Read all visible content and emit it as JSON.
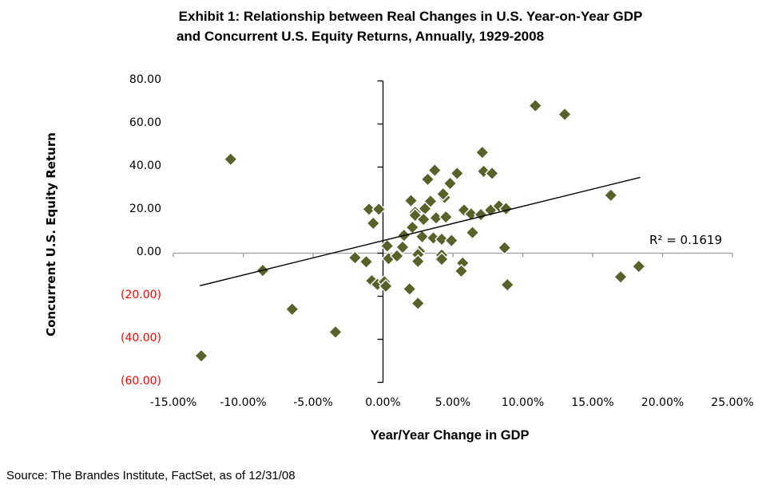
{
  "title": {
    "line1": "Exhibit 1:  Relationship between Real Changes in U.S. Year-on-Year GDP",
    "line2": "and Concurrent U.S. Equity Returns, Annually, 1929-2008"
  },
  "source_note": "Source:  The Brandes Institute, FactSet, as of 12/31/08",
  "chart_data": {
    "type": "scatter",
    "title": "Exhibit 1: Relationship between Real Changes in U.S. Year-on-Year GDP and Concurrent U.S. Equity Returns, Annually, 1929-2008",
    "xlabel": "Year/Year Change in GDP",
    "ylabel": "Concurrent U.S. Equity Return",
    "xlim": [
      -15,
      25
    ],
    "ylim": [
      -60,
      80
    ],
    "grid": "off",
    "r2_label": "R² = 0.1619",
    "x_ticks": [
      {
        "value": -15,
        "label": "-15.00%",
        "color": "#000000"
      },
      {
        "value": -10,
        "label": "-10.00%",
        "color": "#000000"
      },
      {
        "value": -5,
        "label": "-5.00%",
        "color": "#000000"
      },
      {
        "value": 0,
        "label": "0.00%",
        "color": "#000000"
      },
      {
        "value": 5,
        "label": "5.00%",
        "color": "#000000"
      },
      {
        "value": 10,
        "label": "10.00%",
        "color": "#000000"
      },
      {
        "value": 15,
        "label": "15.00%",
        "color": "#000000"
      },
      {
        "value": 20,
        "label": "20.00%",
        "color": "#000000"
      },
      {
        "value": 25,
        "label": "25.00%",
        "color": "#000000"
      }
    ],
    "y_ticks": [
      {
        "value": 80,
        "label": "80.00",
        "color": "#000000"
      },
      {
        "value": 60,
        "label": "60.00",
        "color": "#000000"
      },
      {
        "value": 40,
        "label": "40.00",
        "color": "#000000"
      },
      {
        "value": 20,
        "label": "20.00",
        "color": "#000000"
      },
      {
        "value": 0,
        "label": "0.00",
        "color": "#000000"
      },
      {
        "value": -20,
        "label": "(20.00)",
        "color": "#ff0000"
      },
      {
        "value": -40,
        "label": "(40.00)",
        "color": "#ff0000"
      },
      {
        "value": -60,
        "label": "(60.00)",
        "color": "#ff0000"
      }
    ],
    "marker": {
      "shape": "diamond",
      "color": "#56622a",
      "outline": "#ffffff",
      "size": 16
    },
    "axis_colors": {
      "x_axis": "#9c9c9c",
      "y_axis": "#000000"
    },
    "trendline": {
      "x1": -13.1,
      "y1": -15.1,
      "x2": 18.4,
      "y2": 35.2,
      "color": "#000000"
    },
    "points": [
      [
        -13.0,
        -47.7
      ],
      [
        -10.9,
        43.6
      ],
      [
        -8.6,
        -8.0
      ],
      [
        -6.5,
        -26.0
      ],
      [
        -3.4,
        -36.6
      ],
      [
        -2.0,
        -2.1
      ],
      [
        -1.2,
        -4.0
      ],
      [
        -1.0,
        20.4
      ],
      [
        -0.3,
        20.4
      ],
      [
        -0.7,
        13.9
      ],
      [
        -0.8,
        -12.8
      ],
      [
        -0.4,
        -14.5
      ],
      [
        0.1,
        -13.3
      ],
      [
        0.2,
        -15.3
      ],
      [
        0.4,
        -2.5
      ],
      [
        1.0,
        -1.3
      ],
      [
        0.3,
        3.4
      ],
      [
        1.4,
        2.8
      ],
      [
        1.5,
        8.3
      ],
      [
        1.9,
        -16.6
      ],
      [
        2.0,
        24.4
      ],
      [
        3.4,
        24.1
      ],
      [
        4.4,
        25.9
      ],
      [
        4.3,
        27.6
      ],
      [
        2.3,
        19.0
      ],
      [
        3.0,
        20.7
      ],
      [
        2.3,
        17.6
      ],
      [
        2.9,
        15.7
      ],
      [
        3.8,
        16.4
      ],
      [
        4.5,
        16.8
      ],
      [
        2.1,
        12.0
      ],
      [
        2.8,
        7.7
      ],
      [
        3.6,
        7.1
      ],
      [
        4.2,
        6.5
      ],
      [
        4.9,
        5.9
      ],
      [
        6.4,
        9.6
      ],
      [
        2.6,
        0.9
      ],
      [
        4.2,
        -0.9
      ],
      [
        2.5,
        -0.6
      ],
      [
        2.5,
        -3.8
      ],
      [
        4.2,
        -2.8
      ],
      [
        5.7,
        -4.6
      ],
      [
        5.6,
        -8.3
      ],
      [
        2.5,
        -23.3
      ],
      [
        5.8,
        20.0
      ],
      [
        6.3,
        18.2
      ],
      [
        7.0,
        17.9
      ],
      [
        7.7,
        20.0
      ],
      [
        8.3,
        21.9
      ],
      [
        8.8,
        20.7
      ],
      [
        8.7,
        2.5
      ],
      [
        8.9,
        -14.7
      ],
      [
        3.7,
        38.5
      ],
      [
        3.2,
        34.3
      ],
      [
        5.3,
        37.1
      ],
      [
        7.2,
        38.0
      ],
      [
        7.8,
        37.1
      ],
      [
        4.8,
        32.4
      ],
      [
        4.3,
        27.5
      ],
      [
        7.1,
        46.8
      ],
      [
        10.9,
        68.5
      ],
      [
        13.0,
        64.5
      ],
      [
        16.3,
        26.9
      ],
      [
        18.3,
        -6.1
      ],
      [
        17.0,
        -11.0
      ]
    ]
  }
}
